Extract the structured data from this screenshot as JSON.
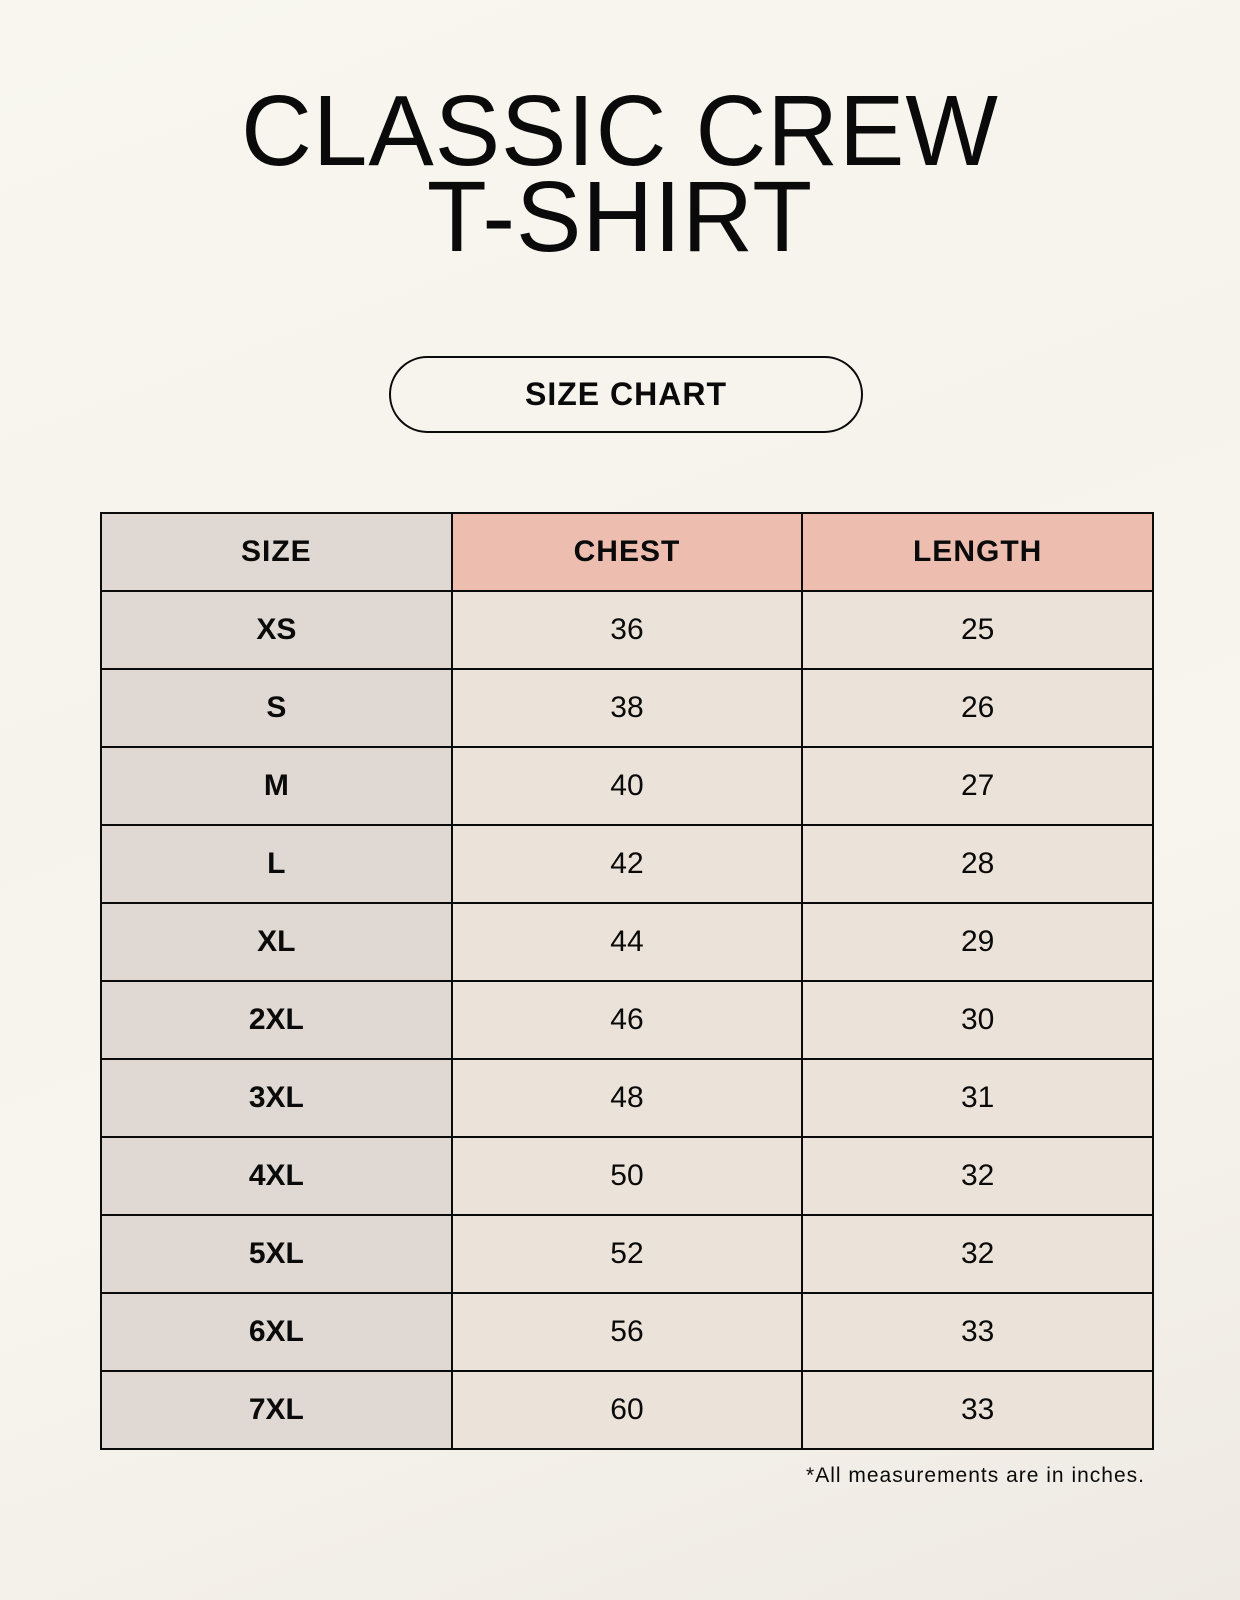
{
  "title": {
    "line1": "CLASSIC CREW",
    "line2": "T-SHIRT"
  },
  "badge": "SIZE CHART",
  "colors": {
    "header_accent": "#edbdb0",
    "size_column": "#e0d9d3",
    "value_cells": "#ebe3d9"
  },
  "table": {
    "headers": [
      "SIZE",
      "CHEST",
      "LENGTH"
    ],
    "rows": [
      [
        "XS",
        "36",
        "25"
      ],
      [
        "S",
        "38",
        "26"
      ],
      [
        "M",
        "40",
        "27"
      ],
      [
        "L",
        "42",
        "28"
      ],
      [
        "XL",
        "44",
        "29"
      ],
      [
        "2XL",
        "46",
        "30"
      ],
      [
        "3XL",
        "48",
        "31"
      ],
      [
        "4XL",
        "50",
        "32"
      ],
      [
        "5XL",
        "52",
        "32"
      ],
      [
        "6XL",
        "56",
        "33"
      ],
      [
        "7XL",
        "60",
        "33"
      ]
    ]
  },
  "footnote": "*All measurements are in inches."
}
